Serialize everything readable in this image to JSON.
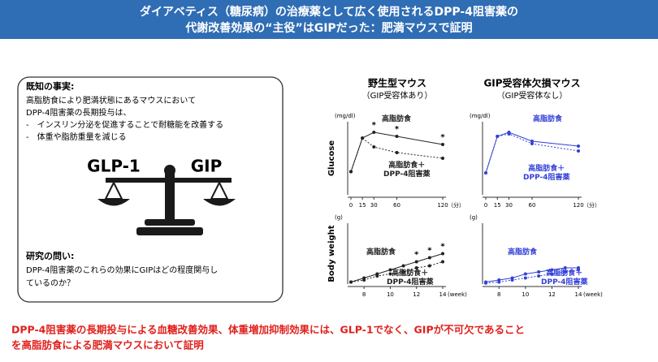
{
  "header": {
    "lines": [
      "ダイアベティス（糖尿病）の治療薬として広く使用されるDPP-4阻害薬の",
      "代謝改善効果の“主役”はGIPだった：肥満マウスで証明"
    ]
  },
  "known_facts": {
    "title": "既知の事実:",
    "lines": [
      "高脂肪食により肥満状態にあるマウスにおいて",
      "DPP-4阻害薬の長期投与は、",
      "-　インスリン分泌を促進することで耐糖能を改善する",
      "-　体重や脂肪重量を減じる"
    ]
  },
  "scale_labels": [
    "GLP-1",
    "GIP"
  ],
  "question": {
    "title": "研究の問い:",
    "lines": [
      "DPP-4阻害薬のこれらの効果にGIPはどの程度関与し",
      "ているのか？"
    ]
  },
  "chart_data": [
    {
      "type": "line",
      "title": "野生型マウス",
      "subtitle": "（GIP受容体あり）",
      "y_label": "Glucose",
      "y_unit": "(mg/dl)",
      "x_unit": "（分）",
      "x": [
        0,
        15,
        30,
        60,
        120
      ],
      "xlim": [
        0,
        120
      ],
      "xticks": [
        0,
        15,
        30,
        60,
        120
      ],
      "ylim": [
        0,
        600
      ],
      "series": [
        {
          "name": "高脂肪食",
          "color": "#222222",
          "dashed": false,
          "values": [
            190,
            466,
            513,
            480,
            413
          ]
        },
        {
          "name": "高脂肪食＋\nDPP-4阻害薬",
          "color": "#222222",
          "dashed": true,
          "values": [
            190,
            466,
            393,
            347,
            300
          ]
        }
      ],
      "annotations": [
        {
          "x": 30,
          "text": "*"
        },
        {
          "x": 60,
          "text": "*"
        },
        {
          "x": 120,
          "text": "*"
        }
      ]
    },
    {
      "type": "line",
      "title": "GIP受容体欠損マウス",
      "subtitle": "（GIP受容体なし）",
      "y_unit": "(mg/dl)",
      "x_unit": "（分）",
      "x": [
        0,
        15,
        30,
        60,
        120
      ],
      "xlim": [
        0,
        120
      ],
      "xticks": [
        0,
        15,
        30,
        60,
        120
      ],
      "ylim": [
        0,
        600
      ],
      "series": [
        {
          "name": "高脂肪食",
          "color": "#3340d6",
          "dashed": false,
          "values": [
            180,
            480,
            513,
            440,
            400
          ]
        },
        {
          "name": "高脂肪食＋\nDPP-4阻害薬",
          "color": "#3340d6",
          "dashed": true,
          "values": [
            180,
            480,
            500,
            420,
            360
          ]
        }
      ]
    },
    {
      "type": "line",
      "y_label": "Body weight",
      "y_unit": "(g)",
      "x_unit": "(week)",
      "x": [
        7,
        8,
        9,
        10,
        11,
        12,
        13,
        14
      ],
      "xlim": [
        7,
        14
      ],
      "xticks": [
        8,
        10,
        12,
        14
      ],
      "ylim": [
        15,
        45
      ],
      "series": [
        {
          "name": "高脂肪食",
          "color": "#222222",
          "dashed": false,
          "values": [
            16,
            18,
            20,
            22,
            24,
            26,
            28,
            30
          ]
        },
        {
          "name": "高脂肪食＋\nDPP-4阻害薬",
          "color": "#222222",
          "dashed": true,
          "values": [
            16,
            17,
            19,
            20,
            21,
            23,
            24,
            26
          ]
        }
      ],
      "annotations": [
        {
          "x": 12,
          "text": "*"
        },
        {
          "x": 13,
          "text": "*"
        },
        {
          "x": 14,
          "text": "*"
        }
      ]
    },
    {
      "type": "line",
      "y_unit": "(g)",
      "x_unit": "(week)",
      "x": [
        7,
        8,
        9,
        10,
        11,
        12,
        13,
        14
      ],
      "xlim": [
        7,
        14
      ],
      "xticks": [
        8,
        10,
        12,
        14
      ],
      "ylim": [
        15,
        45
      ],
      "series": [
        {
          "name": "高脂肪食",
          "color": "#3340d6",
          "dashed": false,
          "values": [
            16,
            17,
            18,
            20,
            21,
            22,
            23,
            23
          ]
        },
        {
          "name": "高脂肪食＋\nDPP-4阻害薬",
          "color": "#3340d6",
          "dashed": true,
          "values": [
            15.5,
            16,
            17,
            18,
            19,
            20,
            21,
            22
          ]
        }
      ]
    }
  ],
  "conclusion": {
    "lines": [
      "DPP-4阻害薬の長期投与による血糖改善効果、体重増加抑制効果には、GLP-1でなく、GIPが不可欠であること",
      "を高脂肪食による肥満マウスにおいて証明"
    ]
  }
}
